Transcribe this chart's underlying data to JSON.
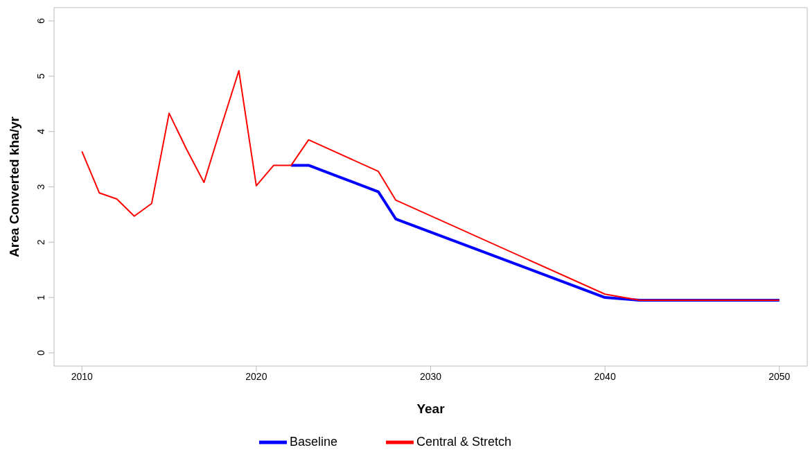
{
  "chart_data": {
    "type": "line",
    "xlabel": "Year",
    "ylabel": "Area Converted kha/yr",
    "xlim": [
      2008.4,
      2051.6
    ],
    "xticks": [
      2010,
      2020,
      2030,
      2040,
      2050
    ],
    "ylim": [
      -0.24,
      6.24
    ],
    "yticks": [
      0,
      1,
      2,
      3,
      4,
      5,
      6
    ],
    "legend": "bottom",
    "series": [
      {
        "name": "Baseline",
        "color": "#0000ff",
        "x": [
          2022,
          2023,
          2027,
          2028,
          2040,
          2042,
          2050
        ],
        "values": [
          3.39,
          3.39,
          2.91,
          2.42,
          1.0,
          0.95,
          0.95
        ]
      },
      {
        "name": "Central & Stretch",
        "color": "#ff0000",
        "x": [
          2010,
          2011,
          2012,
          2013,
          2014,
          2015,
          2016,
          2017,
          2018,
          2019,
          2020,
          2021,
          2022,
          2023,
          2027,
          2028,
          2040,
          2042,
          2050
        ],
        "values": [
          3.64,
          2.89,
          2.78,
          2.47,
          2.7,
          4.33,
          3.68,
          3.08,
          4.1,
          5.1,
          3.02,
          3.39,
          3.39,
          3.85,
          3.28,
          2.76,
          1.06,
          0.95,
          0.95
        ]
      }
    ]
  }
}
